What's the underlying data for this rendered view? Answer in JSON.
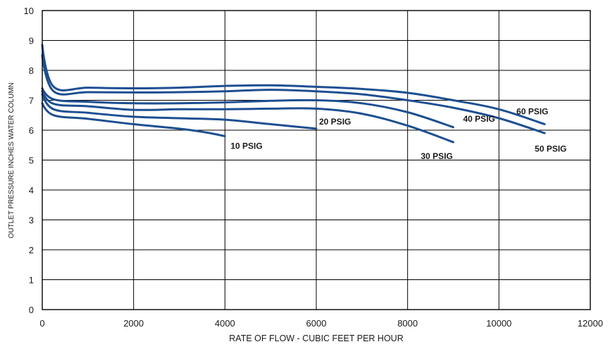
{
  "chart_data": {
    "type": "line",
    "xlabel": "RATE OF FLOW - CUBIC FEET PER HOUR",
    "ylabel": "OUTLET PRESSURE INCHES WATER COLUMN",
    "xlim": [
      0,
      12000
    ],
    "ylim": [
      0,
      10
    ],
    "x_ticks": [
      0,
      2000,
      4000,
      6000,
      8000,
      10000,
      12000
    ],
    "y_ticks": [
      0,
      1,
      2,
      3,
      4,
      5,
      6,
      7,
      8,
      9,
      10
    ],
    "grid": true,
    "line_color": "#1d4f91",
    "series": [
      {
        "name": "10 PSIG",
        "points": [
          [
            0,
            6.9
          ],
          [
            250,
            6.5
          ],
          [
            1000,
            6.38
          ],
          [
            2000,
            6.2
          ],
          [
            3000,
            6.05
          ],
          [
            3600,
            5.92
          ],
          [
            4000,
            5.8
          ]
        ]
      },
      {
        "name": "20 PSIG",
        "points": [
          [
            0,
            7.2
          ],
          [
            250,
            6.7
          ],
          [
            1000,
            6.58
          ],
          [
            2000,
            6.45
          ],
          [
            3000,
            6.4
          ],
          [
            4000,
            6.35
          ],
          [
            5000,
            6.2
          ],
          [
            6000,
            6.05
          ]
        ]
      },
      {
        "name": "30 PSIG",
        "points": [
          [
            0,
            7.3
          ],
          [
            250,
            6.88
          ],
          [
            1000,
            6.8
          ],
          [
            2000,
            6.68
          ],
          [
            3000,
            6.7
          ],
          [
            4000,
            6.7
          ],
          [
            5000,
            6.72
          ],
          [
            6000,
            6.72
          ],
          [
            7000,
            6.55
          ],
          [
            8000,
            6.15
          ],
          [
            9000,
            5.6
          ]
        ]
      },
      {
        "name": "40 PSIG",
        "points": [
          [
            0,
            7.4
          ],
          [
            250,
            7.03
          ],
          [
            1000,
            6.95
          ],
          [
            2000,
            6.9
          ],
          [
            3000,
            6.9
          ],
          [
            4000,
            6.93
          ],
          [
            5000,
            6.98
          ],
          [
            6000,
            7.0
          ],
          [
            7000,
            6.9
          ],
          [
            8000,
            6.6
          ],
          [
            9000,
            6.1
          ]
        ]
      },
      {
        "name": "50 PSIG",
        "points": [
          [
            0,
            8.5
          ],
          [
            250,
            7.3
          ],
          [
            1000,
            7.27
          ],
          [
            2000,
            7.26
          ],
          [
            3000,
            7.27
          ],
          [
            4000,
            7.3
          ],
          [
            5000,
            7.35
          ],
          [
            6000,
            7.3
          ],
          [
            7000,
            7.2
          ],
          [
            8000,
            7.0
          ],
          [
            9000,
            6.75
          ],
          [
            10000,
            6.4
          ],
          [
            11000,
            5.9
          ]
        ]
      },
      {
        "name": "60 PSIG",
        "points": [
          [
            0,
            8.85
          ],
          [
            250,
            7.45
          ],
          [
            1000,
            7.42
          ],
          [
            2000,
            7.4
          ],
          [
            3000,
            7.42
          ],
          [
            4000,
            7.48
          ],
          [
            5000,
            7.5
          ],
          [
            6000,
            7.45
          ],
          [
            7000,
            7.38
          ],
          [
            8000,
            7.25
          ],
          [
            9000,
            7.0
          ],
          [
            10000,
            6.7
          ],
          [
            11000,
            6.2
          ]
        ]
      }
    ]
  }
}
